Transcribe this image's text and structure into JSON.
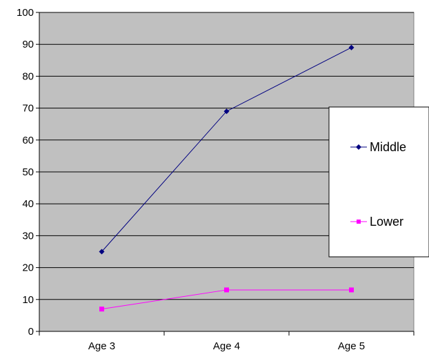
{
  "chart_data": {
    "type": "line",
    "categories": [
      "Age 3",
      "Age 4",
      "Age 5"
    ],
    "series": [
      {
        "name": "Middle",
        "values": [
          25,
          69,
          89
        ],
        "color": "#000080",
        "marker": "diamond"
      },
      {
        "name": "Lower",
        "values": [
          7,
          13,
          13
        ],
        "color": "#ff00ff",
        "marker": "square"
      }
    ],
    "title": "",
    "xlabel": "",
    "ylabel": "",
    "ylim": [
      0,
      100
    ],
    "yticks": [
      "0",
      "10",
      "20",
      "30",
      "40",
      "50",
      "60",
      "70",
      "80",
      "90",
      "100"
    ],
    "grid": true,
    "plot_background": "#c0c0c0",
    "legend_position": "right"
  }
}
